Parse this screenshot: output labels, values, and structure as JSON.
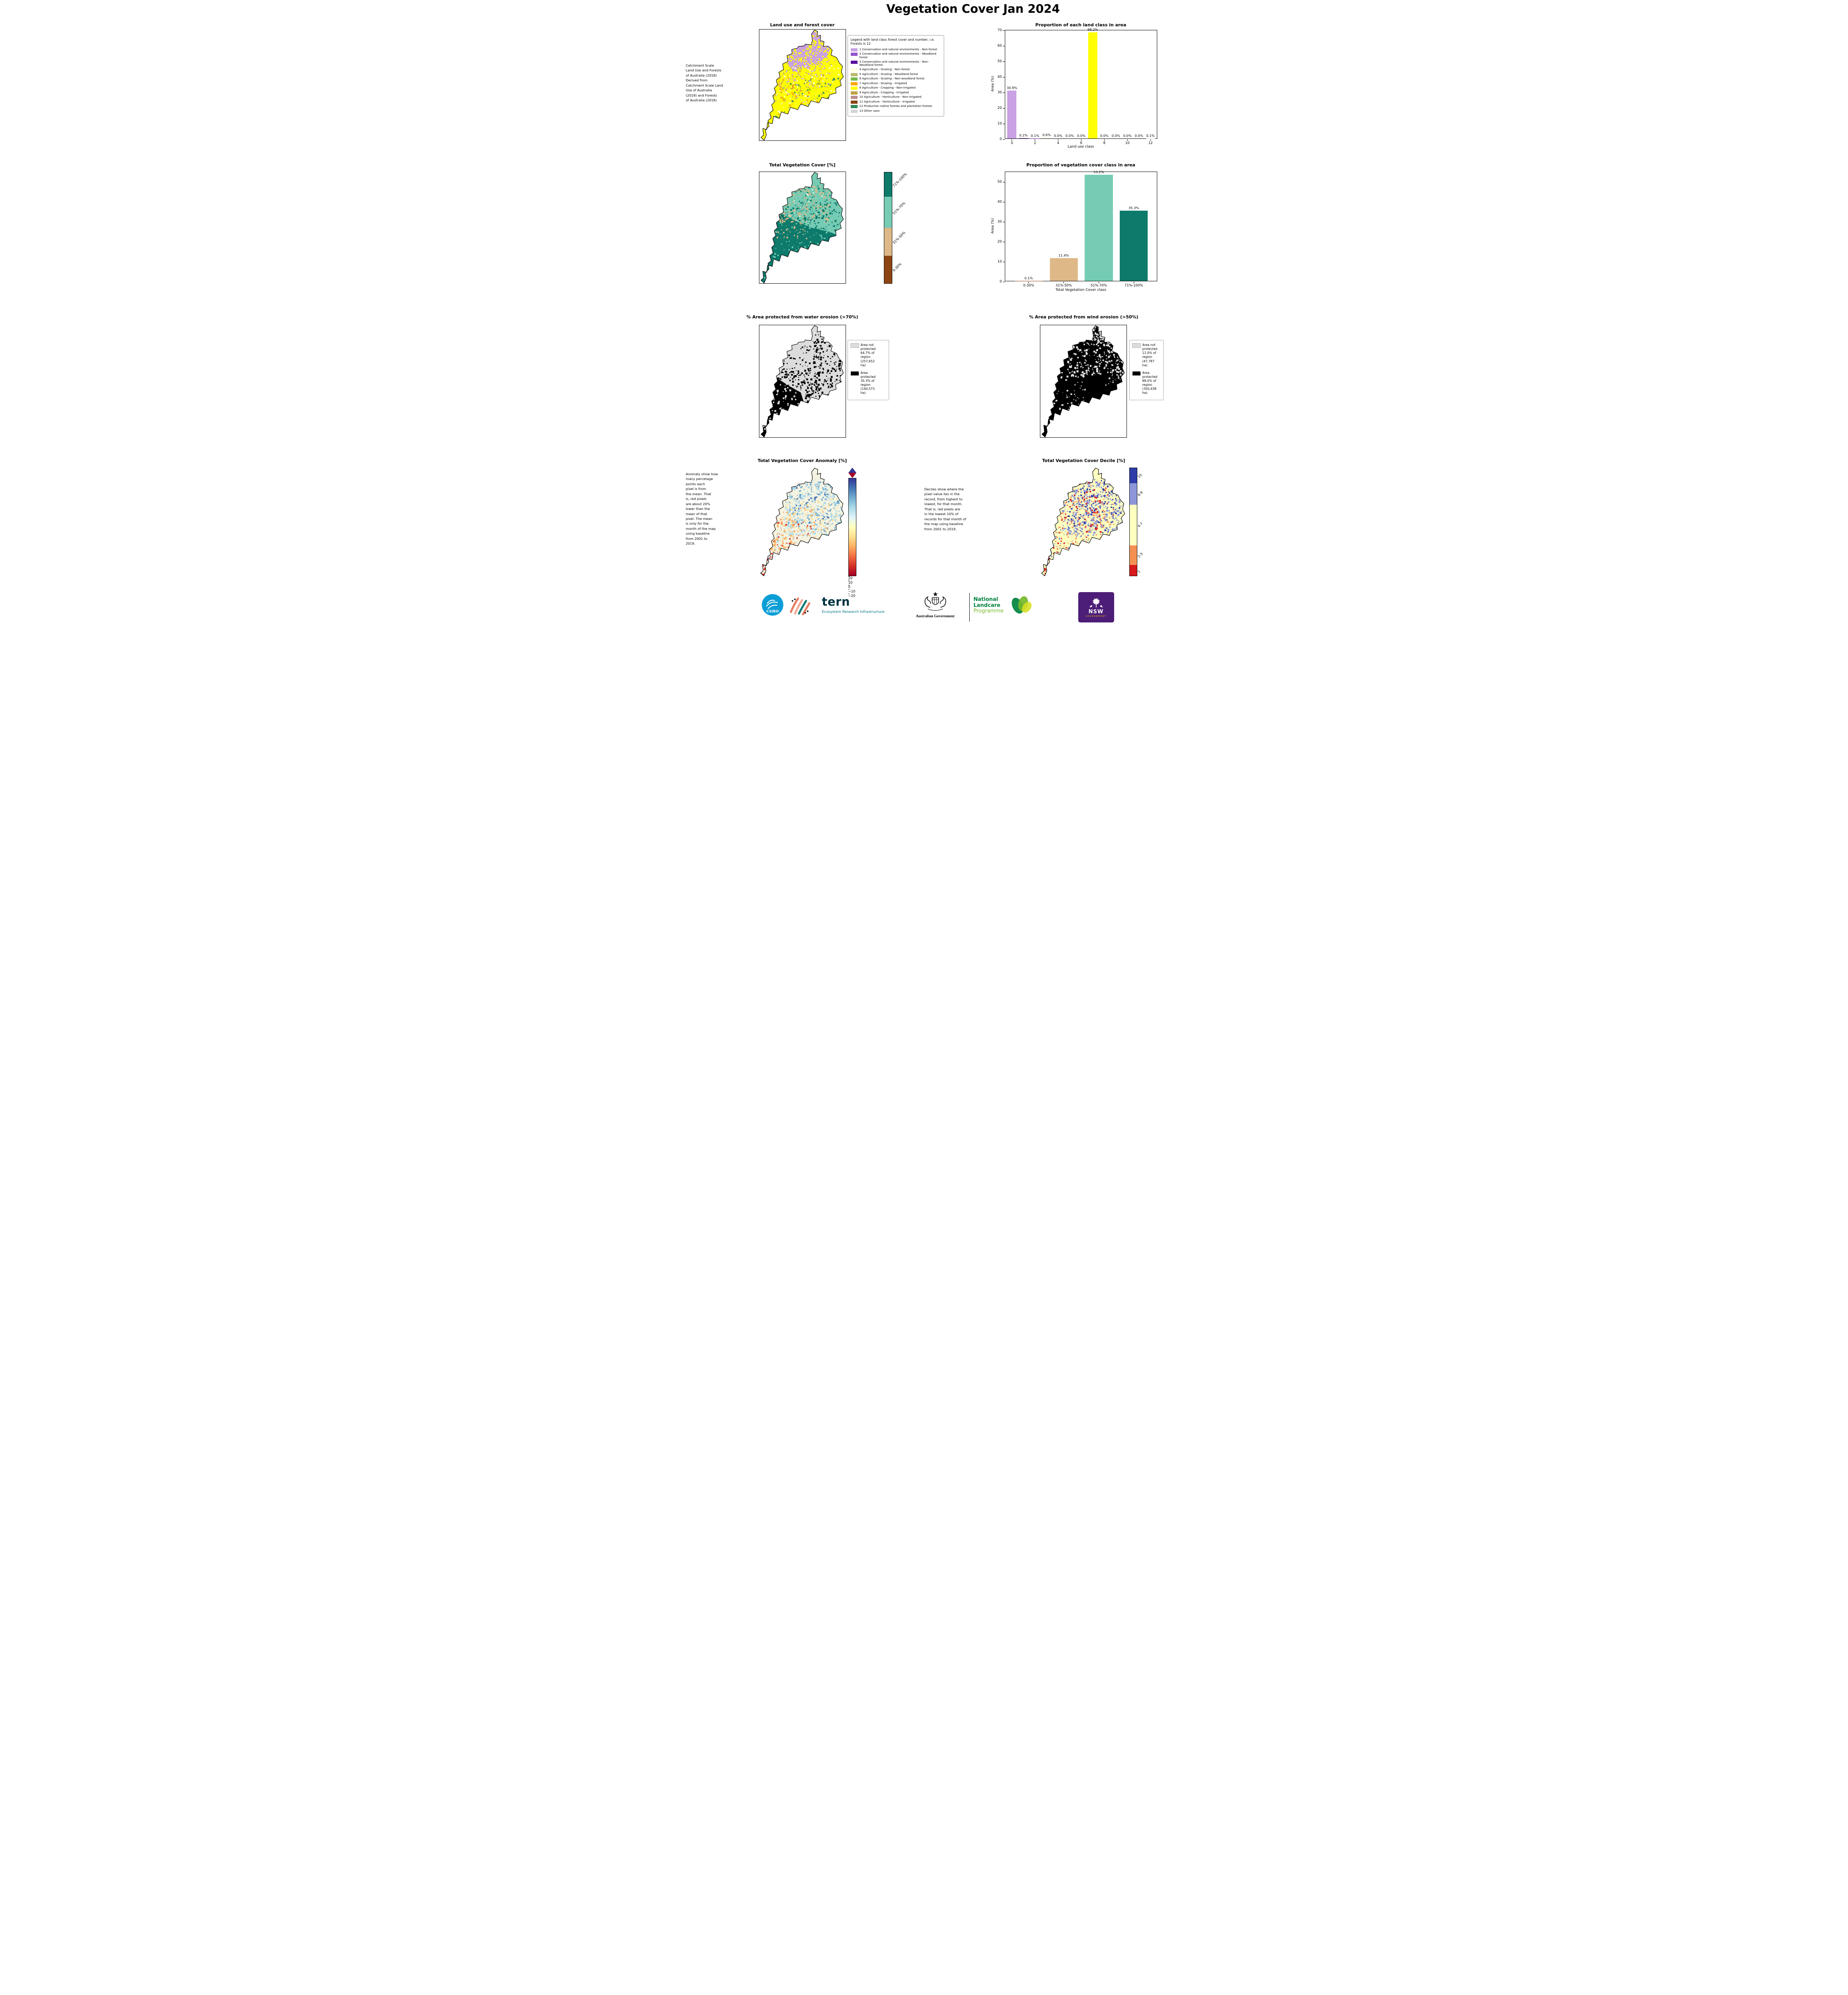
{
  "page": {
    "title": "Vegetation Cover Jan 2024"
  },
  "landuse": {
    "title": "Land use and forest cover",
    "source_note": " Catchment Scale\nLand Use and Forests\nof Australia (2018)\nDerived from\nCatchment Scale Land\nUse of Australia\n(2018) and Forests\nof Australia (2018)",
    "legend_title": "Legend with land class forest cover and number, i.e. Forests is 12",
    "classes": [
      {
        "label": "1 Conservation and natural environments - Non-forest",
        "color": "#C9A1E4"
      },
      {
        "label": "2 Conservation and natural environments - Woodland forest",
        "color": "#9253CE"
      },
      {
        "label": "3 Conservation and natural environments - Non-Woodland forest",
        "color": "#5A0F9C"
      },
      {
        "label": "4 Agriculture - Grazing - Non-forest",
        "color": "#FFFFE0"
      },
      {
        "label": "5 Agriculture - Grazing - Woodland forest",
        "color": "#BDB76B"
      },
      {
        "label": "6 Agriculture - Grazing - Non-woodland forest",
        "color": "#76B947"
      },
      {
        "label": "7 Agriculture - Grazing - Irrigated",
        "color": "#FFA500"
      },
      {
        "label": "8 Agriculture - Cropping - Non-irrigated",
        "color": "#FFFF00"
      },
      {
        "label": "9 Agriculture - Cropping - Irrigated",
        "color": "#BFA145"
      },
      {
        "label": "10 Agriculture - Horticulture - Non-irrigated",
        "color": "#BC8F8F"
      },
      {
        "label": "11 Agriculture - Horticulture - Irrigated",
        "color": "#8B4513"
      },
      {
        "label": "12 Production native forests and plantation forests",
        "color": "#2E8B57"
      },
      {
        "label": "13 Other uses",
        "color": "#D3D3D3"
      }
    ]
  },
  "veg_cover": {
    "title": "Total Vegetation Cover [%]",
    "colorbar": [
      {
        "label": "71%-100%",
        "color": "#0D7A6B"
      },
      {
        "label": "51%-70%",
        "color": "#76CBB4"
      },
      {
        "label": "31%-50%",
        "color": "#DEB887"
      },
      {
        "label": "0-30%",
        "color": "#8B4513"
      }
    ]
  },
  "water_erosion": {
    "title": "% Area protected from water erosion (>70%)",
    "legend": [
      {
        "color": "#DCDCDC",
        "label": "Area not\nprotected\n64.7% of\nregion\n(257,652\nha)"
      },
      {
        "color": "#000000",
        "label": "Area\nprotected\n35.3% of\nregion\n(140,573\nha)"
      }
    ]
  },
  "wind_erosion": {
    "title": "% Area protected from wind erosion (>50%)",
    "legend": [
      {
        "color": "#DCDCDC",
        "label": "Area not\nprotected\n12.0% of\nregion\n(47,787\nha)"
      },
      {
        "color": "#000000",
        "label": "Area\nprotected\n88.0% of\nregion\n(350,438\nha)"
      }
    ]
  },
  "anomaly": {
    "title": "Total Vegetation Cover Anomaly [%]",
    "note": "Anomaly show how\nmany percetage\npoints each\npixel is from\nthe mean. That\nis, red pixels\nare about 20%\nlower than the\nmean of that\npixel. The mean\nis only for the\nmonth of the map\nusing baseline\nfrom 2001 to\n2019.",
    "palette": [
      "#A50026",
      "#D73027",
      "#F46D43",
      "#FDAE61",
      "#FEE090",
      "#FFFFBF",
      "#E0F3F8",
      "#ABD9E9",
      "#74ADD1",
      "#4575B4",
      "#313695"
    ],
    "colorbar_ticks": [
      {
        "label": "20",
        "value": 20
      },
      {
        "label": "10",
        "value": 10
      },
      {
        "label": "0",
        "value": 0
      },
      {
        "label": "−10",
        "value": -10
      },
      {
        "label": "−20",
        "value": -20
      }
    ]
  },
  "decile": {
    "title": "Total Vegetation Cover Decile [%]",
    "note": "Deciles show where the\npixel value lies in the\nrecord, from highest to\nlowest, for that month.\nThat is, red pixels are\nin the lowest 10% of\nrecords for that month of\nthe map using baseline\nfrom 2001 to 2019.",
    "colorbar": [
      {
        "label": "10",
        "color": "#2D3CA8"
      },
      {
        "label": "8-9",
        "color": "#8C96D9"
      },
      {
        "label": "4-7",
        "color": "#FFFFC0"
      },
      {
        "label": "2-3",
        "color": "#F59053"
      },
      {
        "label": "1",
        "color": "#D7191C"
      }
    ]
  },
  "chart_data": [
    {
      "type": "bar",
      "title": "Proportion of each land class in area",
      "xlabel": "Land use class",
      "ylabel": "Area (%)",
      "x": [
        0,
        1,
        2,
        3,
        4,
        5,
        6,
        7,
        8,
        9,
        10,
        11,
        12
      ],
      "values": [
        30.9,
        0.2,
        0.1,
        0.6,
        0.0,
        0.0,
        0.0,
        68.2,
        0.0,
        0.0,
        0.0,
        0.0,
        0.1
      ],
      "labels": [
        "30.9%",
        "0.2%",
        "0.1%",
        "0.6%",
        "0.0%",
        "0.0%",
        "0.0%",
        "68.2%",
        "0.0%",
        "0.0%",
        "0.0%",
        "0.0%",
        "0.1%"
      ],
      "colors": [
        "#C9A1E4",
        "#9253CE",
        "#5A0F9C",
        "#FFFFE0",
        "#BDB76B",
        "#76B947",
        "#FFA500",
        "#FFFF00",
        "#BFA145",
        "#BC8F8F",
        "#8B4513",
        "#2E8B57",
        "#D3D3D3"
      ],
      "ylim": [
        0,
        70
      ],
      "yticks": [
        0,
        10,
        20,
        30,
        40,
        50,
        60,
        70
      ],
      "xticks": [
        0,
        2,
        4,
        6,
        8,
        10,
        12
      ],
      "legend_position": "none",
      "grid": false
    },
    {
      "type": "bar",
      "title": "Proportion of vegetation cover class in area",
      "xlabel": "Total Vegetation Cover class",
      "ylabel": "Area (%)",
      "categories": [
        "0-30%",
        "31%-50%",
        "51%-70%",
        "71%-100%"
      ],
      "values": [
        0.1,
        11.4,
        53.2,
        35.3
      ],
      "labels": [
        "0.1%",
        "11.4%",
        "53.2%",
        "35.3%"
      ],
      "colors": [
        "#8B4513",
        "#DEB887",
        "#76CBB4",
        "#0D7A6B"
      ],
      "ylim": [
        0,
        55
      ],
      "yticks": [
        0,
        10,
        20,
        30,
        40,
        50
      ],
      "legend_position": "none",
      "grid": false
    }
  ],
  "logos": {
    "csiro": "CSIRO",
    "tern_name": "tern",
    "tern_sub": "Ecosystem Research Infrastructure",
    "aus_gov": "Australian Government",
    "landcare": [
      "National",
      "Landcare",
      "Programme"
    ],
    "nsw_name": "NSW",
    "nsw_sub": "GOVERNMENT"
  }
}
